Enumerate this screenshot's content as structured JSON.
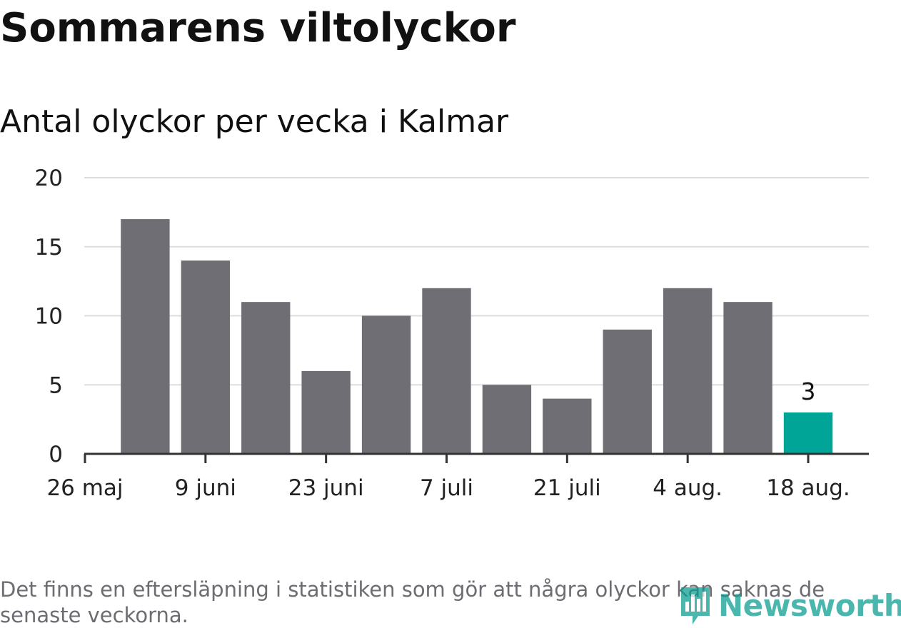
{
  "header": {
    "title": "Sommarens viltolyckor",
    "subtitle": "Antal olyckor per vecka i Kalmar"
  },
  "footer": {
    "note": "Det finns en eftersläpning i statistiken som gör att några olyckor kan saknas de senaste veckorna.",
    "brand": "Newsworthy"
  },
  "colors": {
    "bar": "#6f6e74",
    "highlight": "#00a598",
    "grid": "#dddddd",
    "axis": "#333333",
    "text": "#222222",
    "brand": "#079a8f"
  },
  "icons": {
    "logo": "bar-chart-badge-icon"
  },
  "chart_data": {
    "type": "bar",
    "title": "Antal olyckor per vecka i Kalmar",
    "xlabel": "",
    "ylabel": "",
    "ylim": [
      0,
      20
    ],
    "yticks": [
      "0",
      "5",
      "10",
      "15",
      "20"
    ],
    "xtick_labels": [
      "26 maj",
      "9 juni",
      "23 juni",
      "7 juli",
      "21 juli",
      "4 aug.",
      "18 aug."
    ],
    "grid": true,
    "values": [
      17,
      14,
      11,
      6,
      10,
      12,
      5,
      4,
      9,
      12,
      11,
      3
    ],
    "highlight_index": 11,
    "annotation": {
      "index": 11,
      "text": "3"
    }
  }
}
